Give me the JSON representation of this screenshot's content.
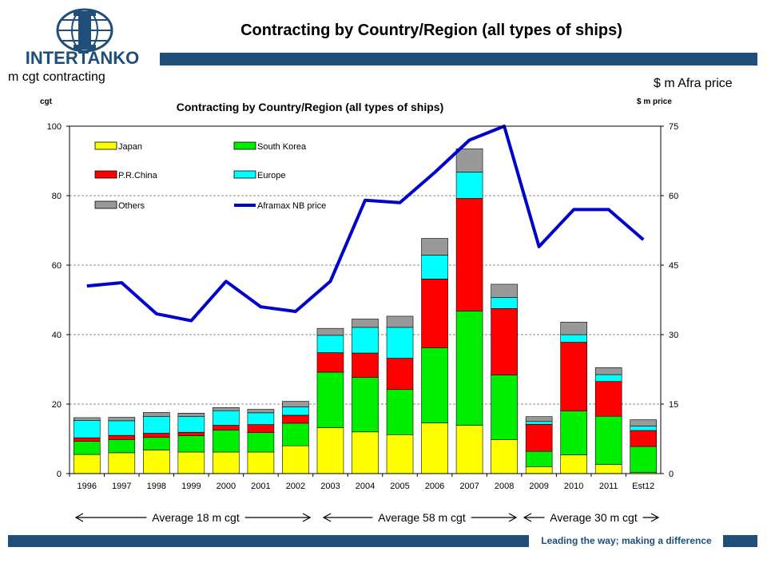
{
  "header": {
    "logo_text": "INTERTANKO",
    "slide_title": "Contracting by Country/Region (all types of ships)",
    "left_label": "m cgt contracting",
    "right_label": "$ m Afra price"
  },
  "footer": {
    "tagline": "Leading the way; making a difference"
  },
  "averages": [
    {
      "label": "Average 18 m cgt"
    },
    {
      "label": "Average 58 m cgt"
    },
    {
      "label": "Average 30 m cgt"
    }
  ],
  "colors": {
    "brand_navy": "#1f4e79",
    "japan": "#ffff00",
    "south_korea": "#00ee00",
    "china": "#ff0000",
    "europe": "#00ffff",
    "others": "#999999",
    "price_line": "#0000cc"
  },
  "chart_data": {
    "type": "bar",
    "stacked": true,
    "title": "Contracting by Country/Region (all types of ships)",
    "ylabel": "cgt",
    "y2label": "$ m price",
    "ylim": [
      0,
      100
    ],
    "y2lim": [
      0,
      75
    ],
    "yticks": [
      0,
      20,
      40,
      60,
      80,
      100
    ],
    "y2ticks": [
      0,
      15,
      30,
      45,
      60,
      75
    ],
    "grid": true,
    "legend_position": "top-left",
    "categories": [
      "1996",
      "1997",
      "1998",
      "1999",
      "2000",
      "2001",
      "2002",
      "2003",
      "2004",
      "2005",
      "2006",
      "2007",
      "2008",
      "2009",
      "2010",
      "2011",
      "Est12"
    ],
    "series": [
      {
        "name": "Japan",
        "color": "#ffff00",
        "values": [
          5.5,
          6,
          6.8,
          6.2,
          6.2,
          6.2,
          8,
          13.2,
          12,
          11.2,
          14.6,
          13.9,
          9.8,
          2,
          5.4,
          2.6,
          0.3
        ]
      },
      {
        "name": "South Korea",
        "color": "#00ee00",
        "values": [
          3.8,
          3.8,
          3.6,
          4.7,
          6.3,
          5.6,
          6.5,
          16,
          15.7,
          13,
          21.6,
          32.9,
          18.6,
          4.4,
          12.6,
          13.9,
          7.5
        ]
      },
      {
        "name": "P.R.China",
        "color": "#ff0000",
        "values": [
          1,
          1.2,
          1.2,
          1,
          1.4,
          2.3,
          2.3,
          5.6,
          7,
          9,
          19.8,
          32.4,
          19.1,
          7.8,
          19.8,
          10,
          4.6
        ]
      },
      {
        "name": "Europe",
        "color": "#00ffff",
        "values": [
          5,
          4.2,
          4.8,
          4.5,
          4.2,
          3.4,
          2.4,
          5,
          7.4,
          8.9,
          6.9,
          7.6,
          3.2,
          0.8,
          2.2,
          2,
          1.3
        ]
      },
      {
        "name": "Others",
        "color": "#999999",
        "values": [
          0.8,
          1,
          1.2,
          1,
          0.9,
          1,
          1.6,
          2,
          2.4,
          3.2,
          4.8,
          6.7,
          3.8,
          1.4,
          3.6,
          2,
          1.8
        ]
      },
      {
        "name": "Aframax NB price",
        "color": "#0000cc",
        "type": "line",
        "axis": "right",
        "values": [
          40.5,
          41.2,
          34.5,
          33,
          41.5,
          36,
          35,
          41.5,
          59,
          58.5,
          65,
          72,
          75,
          49,
          57,
          57,
          50.5
        ]
      }
    ]
  }
}
